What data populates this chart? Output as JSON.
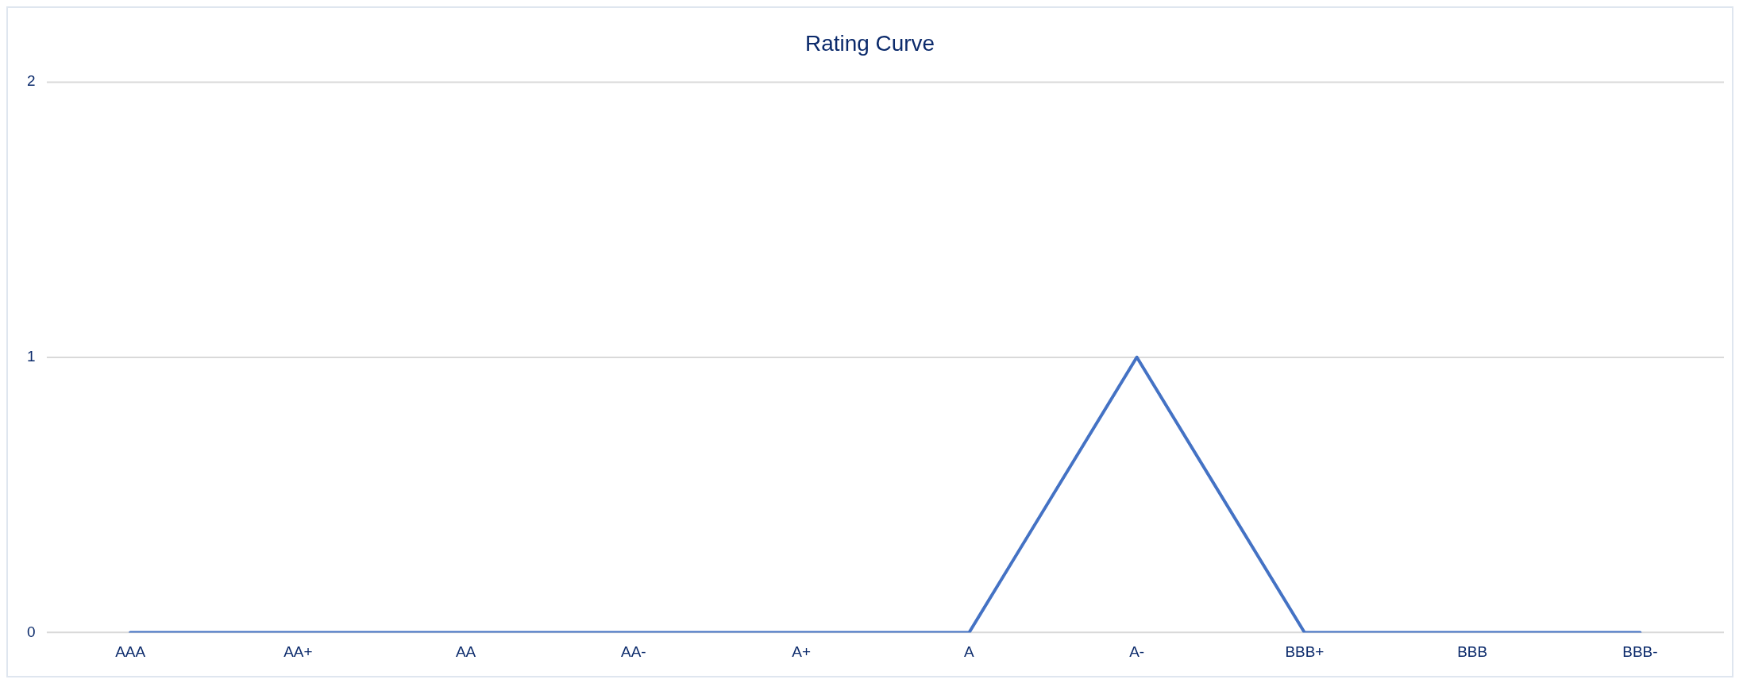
{
  "chart_data": {
    "type": "line",
    "title": "Rating Curve",
    "categories": [
      "AAA",
      "AA+",
      "AA",
      "AA-",
      "A+",
      "A",
      "A-",
      "BBB+",
      "BBB",
      "BBB-"
    ],
    "series": [
      {
        "color": "#4472c4",
        "values": [
          0,
          0,
          0,
          0,
          0,
          0,
          1,
          0,
          0,
          0
        ]
      }
    ],
    "ylim": [
      0,
      2
    ],
    "yticks": [
      0,
      1,
      2
    ],
    "grid": "y",
    "legend": false,
    "marker": "none",
    "line_style": "solid"
  }
}
